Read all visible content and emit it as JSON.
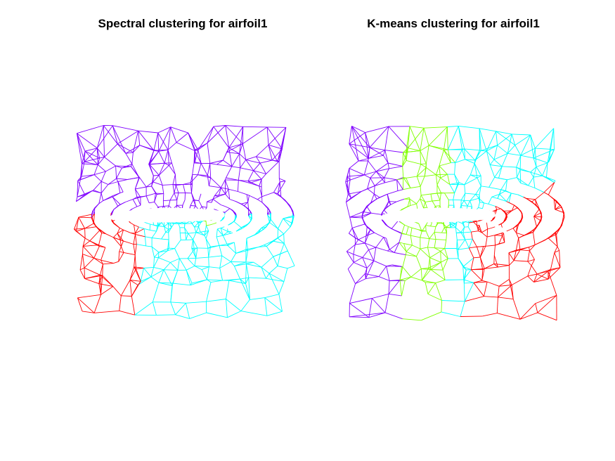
{
  "figure": {
    "panels": [
      {
        "id": "spectral",
        "title": "Spectral clustering for airfoil1",
        "cluster_colors": [
          "#7F00FF",
          "#FF0000",
          "#00FFFF",
          "#80FF00"
        ]
      },
      {
        "id": "kmeans",
        "title": "K-means clustering for airfoil1",
        "cluster_colors": [
          "#7F00FF",
          "#80FF00",
          "#00FFFF",
          "#FF0000"
        ]
      }
    ]
  }
}
